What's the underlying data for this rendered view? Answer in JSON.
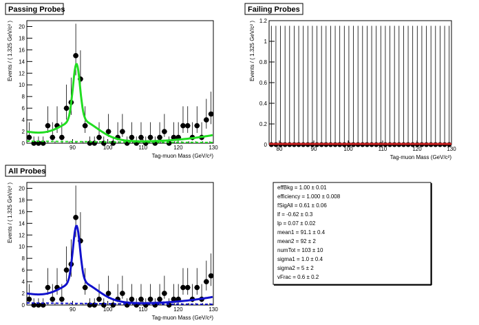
{
  "chart_data": [
    {
      "type": "scatter",
      "title": "Passing Probes",
      "xlabel": "Tag-muon Mass (GeV/c²)",
      "ylabel": "Events / ( 1.325 GeV/c² )",
      "xlim": [
        77,
        130
      ],
      "ylim": [
        0,
        21
      ],
      "xticks": [
        90,
        100,
        110,
        120,
        130
      ],
      "yticks": [
        0,
        2,
        4,
        6,
        8,
        10,
        12,
        14,
        16,
        18,
        20
      ],
      "grid": false,
      "x": [
        77.66,
        78.99,
        80.31,
        81.64,
        82.96,
        84.29,
        85.61,
        86.94,
        88.26,
        89.59,
        90.91,
        92.24,
        93.56,
        94.89,
        96.21,
        97.54,
        98.86,
        100.19,
        101.51,
        102.84,
        104.16,
        105.49,
        106.81,
        108.14,
        109.46,
        110.79,
        112.11,
        113.44,
        114.76,
        116.09,
        117.41,
        118.74,
        120.06,
        121.39,
        122.71,
        124.04,
        125.36,
        126.69,
        128.01,
        129.34
      ],
      "y": [
        1,
        0,
        0,
        0,
        3,
        1,
        3,
        1,
        6,
        7,
        15,
        11,
        3,
        0,
        0,
        1,
        0,
        2,
        0,
        1,
        2,
        0,
        1,
        0,
        1,
        0,
        1,
        0,
        1,
        2,
        0,
        1,
        1,
        3,
        3,
        1,
        3,
        1,
        4,
        5
      ],
      "series": [
        {
          "color": "#22dd22",
          "style": "solid"
        },
        {
          "color": "#22dd22",
          "style": "dashed"
        }
      ]
    },
    {
      "type": "scatter",
      "title": "Failing Probes",
      "xlabel": "Tag-muon Mass (GeV/c²)",
      "ylabel": "Events / ( 1.325 GeV/c² )",
      "xlim": [
        77,
        130
      ],
      "ylim": [
        0,
        1.2
      ],
      "xticks": [
        80,
        90,
        100,
        110,
        120,
        130
      ],
      "yticks": [
        0,
        0.2,
        0.4,
        0.6,
        0.8,
        1,
        1.2
      ],
      "ytick_labels": [
        "0",
        "0.2",
        "0.4",
        "0.6",
        "0.8",
        "1",
        "1.2"
      ],
      "grid": false,
      "y_all": 0,
      "error_hi": 1.15,
      "series": [
        {
          "color": "#cc2222",
          "style": "solid"
        }
      ]
    },
    {
      "type": "scatter",
      "title": "All Probes",
      "xlabel": "Tag-muon Mass (GeV/c²)",
      "ylabel": "Events / ( 1.325 GeV/c² )",
      "xlim": [
        77,
        130
      ],
      "ylim": [
        0,
        21
      ],
      "xticks": [
        90,
        100,
        110,
        120,
        130
      ],
      "yticks": [
        0,
        2,
        4,
        6,
        8,
        10,
        12,
        14,
        16,
        18,
        20
      ],
      "grid": false,
      "x": [
        77.66,
        78.99,
        80.31,
        81.64,
        82.96,
        84.29,
        85.61,
        86.94,
        88.26,
        89.59,
        90.91,
        92.24,
        93.56,
        94.89,
        96.21,
        97.54,
        98.86,
        100.19,
        101.51,
        102.84,
        104.16,
        105.49,
        106.81,
        108.14,
        109.46,
        110.79,
        112.11,
        113.44,
        114.76,
        116.09,
        117.41,
        118.74,
        120.06,
        121.39,
        122.71,
        124.04,
        125.36,
        126.69,
        128.01,
        129.34
      ],
      "y": [
        1,
        0,
        0,
        0,
        3,
        1,
        3,
        1,
        6,
        7,
        15,
        11,
        3,
        0,
        0,
        1,
        0,
        2,
        0,
        1,
        2,
        0,
        1,
        0,
        1,
        0,
        1,
        0,
        1,
        2,
        0,
        1,
        1,
        3,
        3,
        1,
        3,
        1,
        4,
        5
      ],
      "series": [
        {
          "color": "#1111cc",
          "style": "solid"
        },
        {
          "color": "#1111cc",
          "style": "dashed"
        }
      ]
    }
  ],
  "params": [
    "effBkg =  1.00 ± 0.01",
    "efficiency =  1.000 ± 0.008",
    "fSigAll =  0.61 ± 0.06",
    "lf =  -0.62 ± 0.3",
    "lp =  0.07 ± 0.02",
    "mean1 =  91.1 ± 0.4",
    "mean2 =  92 ± 2",
    "numTot =  103 ± 10",
    "sigma1 =  1.0 ± 0.4",
    "sigma2 =  5 ± 2",
    "vFrac =  0.6 ± 0.2"
  ]
}
